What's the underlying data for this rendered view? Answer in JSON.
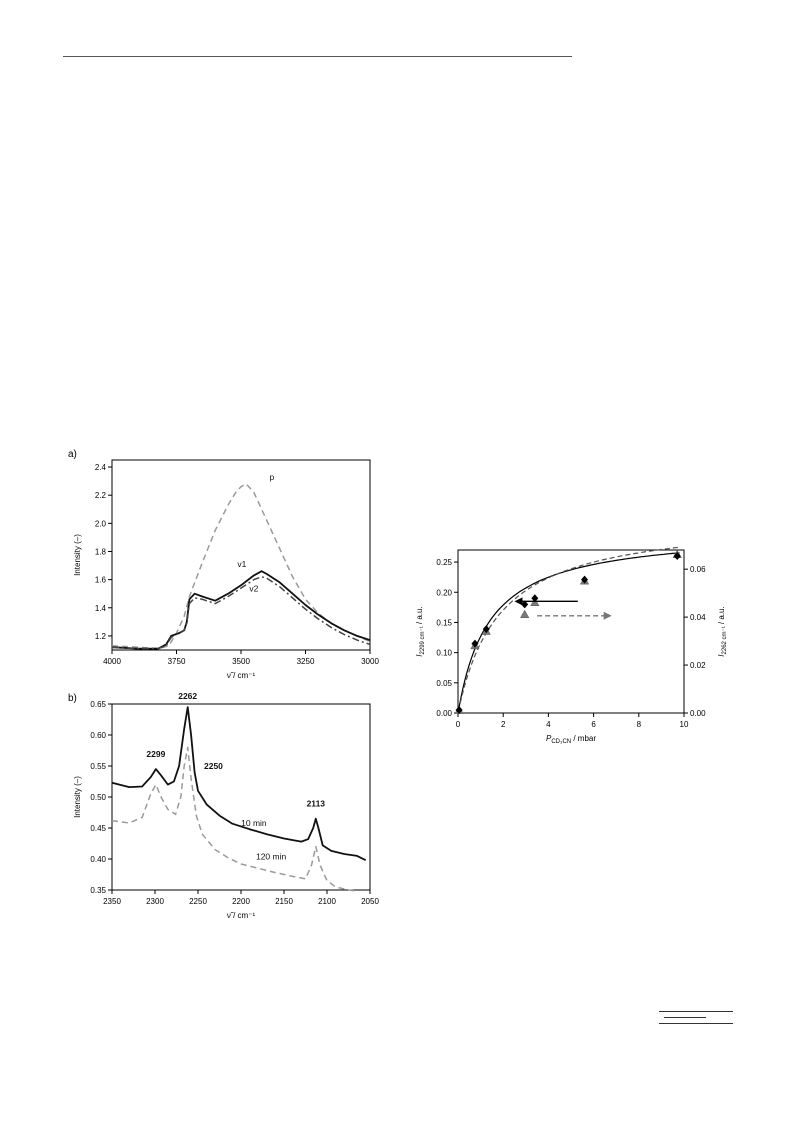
{
  "chart_data": [
    {
      "type": "line",
      "panel_label": "a)",
      "xlabel": "ν̃ / cm⁻¹",
      "ylabel": "Intensity (–)",
      "xlim": [
        4000,
        3000
      ],
      "ylim": [
        1.1,
        2.45
      ],
      "x_reversed": true,
      "xticks": [
        "4000",
        "3750",
        "3500",
        "3250",
        "3000"
      ],
      "yticks": [
        "1.2",
        "1.4",
        "1.6",
        "1.8",
        "2.0",
        "2.2",
        "2.4"
      ],
      "annotations": [
        "p",
        "v1",
        "v2"
      ],
      "series": [
        {
          "name": "p",
          "color": "#9a9a9a",
          "dash": "dashed",
          "x": [
            4000,
            3900,
            3820,
            3780,
            3750,
            3720,
            3700,
            3650,
            3600,
            3550,
            3520,
            3500,
            3480,
            3450,
            3400,
            3350,
            3300,
            3250,
            3200,
            3150,
            3100,
            3050,
            3000
          ],
          "y": [
            1.13,
            1.12,
            1.11,
            1.13,
            1.22,
            1.34,
            1.48,
            1.72,
            1.95,
            2.13,
            2.22,
            2.26,
            2.28,
            2.22,
            2.02,
            1.82,
            1.62,
            1.46,
            1.36,
            1.29,
            1.24,
            1.2,
            1.16
          ]
        },
        {
          "name": "v1",
          "color": "#111111",
          "dash": "solid",
          "x": [
            4000,
            3900,
            3820,
            3790,
            3770,
            3740,
            3720,
            3710,
            3700,
            3680,
            3650,
            3600,
            3550,
            3500,
            3450,
            3420,
            3400,
            3350,
            3300,
            3250,
            3200,
            3150,
            3100,
            3050,
            3000
          ],
          "y": [
            1.12,
            1.11,
            1.11,
            1.14,
            1.2,
            1.22,
            1.24,
            1.3,
            1.46,
            1.5,
            1.48,
            1.45,
            1.5,
            1.56,
            1.63,
            1.66,
            1.64,
            1.58,
            1.5,
            1.42,
            1.35,
            1.29,
            1.24,
            1.2,
            1.17
          ]
        },
        {
          "name": "v2",
          "color": "#444444",
          "dash": "dashdot",
          "x": [
            4000,
            3900,
            3820,
            3790,
            3770,
            3740,
            3720,
            3710,
            3700,
            3680,
            3650,
            3600,
            3550,
            3500,
            3450,
            3420,
            3400,
            3350,
            3300,
            3250,
            3200,
            3150,
            3100,
            3050,
            3000
          ],
          "y": [
            1.12,
            1.11,
            1.11,
            1.13,
            1.19,
            1.22,
            1.24,
            1.29,
            1.43,
            1.47,
            1.46,
            1.43,
            1.48,
            1.54,
            1.6,
            1.62,
            1.61,
            1.55,
            1.47,
            1.39,
            1.32,
            1.26,
            1.21,
            1.17,
            1.14
          ]
        }
      ]
    },
    {
      "type": "line",
      "panel_label": "b)",
      "xlabel": "ν̃ / cm⁻¹",
      "ylabel": "Intensity (–)",
      "xlim": [
        2350,
        2050
      ],
      "ylim": [
        0.35,
        0.65
      ],
      "x_reversed": true,
      "xticks": [
        "2350",
        "2300",
        "2250",
        "2200",
        "2150",
        "2100",
        "2050"
      ],
      "yticks": [
        "0.35",
        "0.40",
        "0.45",
        "0.50",
        "0.55",
        "0.60",
        "0.65"
      ],
      "peak_labels": [
        "2299",
        "2262",
        "2250",
        "2113"
      ],
      "curve_labels": [
        "10 min",
        "120 min"
      ],
      "series": [
        {
          "name": "10 min",
          "color": "#111111",
          "dash": "solid",
          "x": [
            2350,
            2330,
            2315,
            2305,
            2299,
            2293,
            2285,
            2278,
            2272,
            2266,
            2262,
            2258,
            2254,
            2250,
            2240,
            2225,
            2210,
            2190,
            2170,
            2150,
            2130,
            2122,
            2116,
            2113,
            2110,
            2105,
            2095,
            2080,
            2065,
            2055
          ],
          "y": [
            0.523,
            0.516,
            0.517,
            0.532,
            0.545,
            0.535,
            0.52,
            0.525,
            0.55,
            0.61,
            0.645,
            0.6,
            0.54,
            0.51,
            0.488,
            0.47,
            0.457,
            0.448,
            0.44,
            0.433,
            0.428,
            0.432,
            0.45,
            0.465,
            0.45,
            0.422,
            0.413,
            0.408,
            0.405,
            0.398
          ]
        },
        {
          "name": "120 min",
          "color": "#9a9a9a",
          "dash": "dashed",
          "x": [
            2350,
            2330,
            2315,
            2305,
            2299,
            2293,
            2285,
            2276,
            2270,
            2266,
            2262,
            2258,
            2252,
            2245,
            2230,
            2215,
            2200,
            2180,
            2160,
            2140,
            2125,
            2118,
            2113,
            2108,
            2100,
            2090,
            2075,
            2065
          ],
          "y": [
            0.462,
            0.458,
            0.467,
            0.505,
            0.52,
            0.5,
            0.48,
            0.472,
            0.5,
            0.55,
            0.58,
            0.53,
            0.47,
            0.44,
            0.415,
            0.402,
            0.392,
            0.385,
            0.378,
            0.372,
            0.368,
            0.39,
            0.42,
            0.39,
            0.365,
            0.355,
            0.35,
            0.348
          ]
        }
      ]
    },
    {
      "type": "scatter",
      "xlabel_main": "P",
      "xlabel_sub": "CD₃CN",
      "xlabel_unit": " / mbar",
      "ylabel_left_main": "I",
      "ylabel_left_sub": "2299 cm⁻¹",
      "ylabel_left_unit": " / a.u.",
      "ylabel_right_main": "I",
      "ylabel_right_sub": "2262 cm⁻¹",
      "ylabel_right_unit": " / a.u.",
      "xlim": [
        0,
        10
      ],
      "ylim_left": [
        0,
        0.27
      ],
      "ylim_right": [
        0,
        0.068
      ],
      "xticks": [
        "0",
        "2",
        "4",
        "6",
        "8",
        "10"
      ],
      "yticks_left": [
        "0.00",
        "0.05",
        "0.10",
        "0.15",
        "0.20",
        "0.25"
      ],
      "yticks_right": [
        "0.00",
        "0.02",
        "0.04",
        "0.06"
      ],
      "series": [
        {
          "name": "",
          "axis": "left",
          "marker": "diamond",
          "color": "#000000",
          "fit": "solid",
          "x": [
            0.05,
            0.75,
            1.25,
            2.95,
            3.4,
            5.6,
            9.7
          ],
          "y": [
            0.005,
            0.115,
            0.139,
            0.18,
            0.19,
            0.221,
            0.26
          ]
        },
        {
          "name": "",
          "axis": "right",
          "marker": "triangle",
          "color": "#7a7a7a",
          "fit": "dashed",
          "x": [
            0.05,
            0.75,
            1.25,
            2.95,
            3.4,
            5.6,
            9.7
          ],
          "y": [
            0.001,
            0.028,
            0.034,
            0.041,
            0.046,
            0.055,
            0.066
          ]
        }
      ]
    }
  ]
}
